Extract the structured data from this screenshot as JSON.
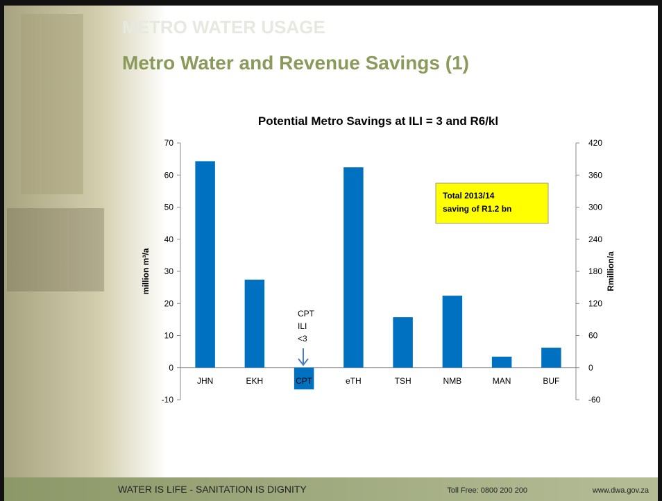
{
  "header": {
    "section": "METRO WATER USAGE",
    "title": "Metro Water and Revenue Savings (1)"
  },
  "chart_data": {
    "type": "bar",
    "title": "Potential Metro Savings at ILI = 3 and R6/kl",
    "categories": [
      "JHN",
      "EKH",
      "CPT",
      "eTH",
      "TSH",
      "NMB",
      "MAN",
      "BUF"
    ],
    "values": [
      64.3,
      27.4,
      -6.8,
      62.4,
      15.7,
      22.4,
      3.4,
      6.2
    ],
    "color": "#0070c0",
    "ylabel": "million m³/a",
    "y2label": "Rmillion/a",
    "ylim": [
      -10,
      70
    ],
    "yticks": [
      -10,
      0,
      10,
      20,
      30,
      40,
      50,
      60,
      70
    ],
    "y2lim": [
      -60,
      420
    ],
    "y2ticks": [
      -60,
      0,
      60,
      120,
      180,
      240,
      300,
      360,
      420
    ],
    "grid": false,
    "annotations": [
      {
        "lines": [
          "Total 2013/14",
          "saving of R1.2 bn"
        ]
      },
      {
        "lines": [
          "CPT",
          "ILI",
          "<3"
        ]
      }
    ]
  },
  "footer": {
    "slogan": "WATER IS LIFE - SANITATION IS DIGNITY",
    "phone": "Toll Free: 0800 200 200",
    "web": "www.dwa.gov.za"
  }
}
